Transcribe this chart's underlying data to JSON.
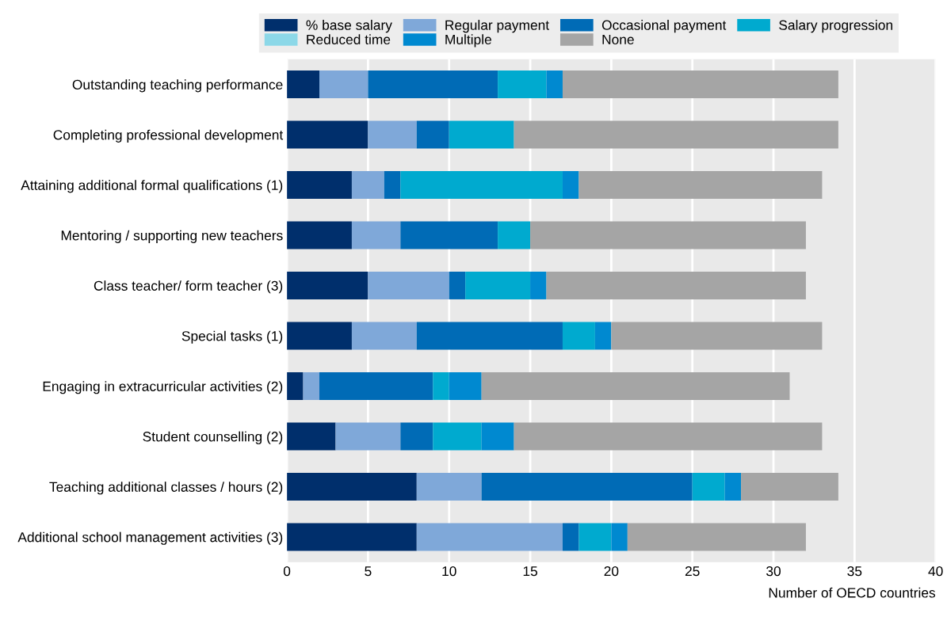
{
  "chart_data": {
    "type": "bar",
    "orientation": "horizontal",
    "stacked": true,
    "categories": [
      "Outstanding teaching performance",
      "Completing professional development",
      "Attaining additional formal qualifications (1)",
      "Mentoring / supporting new teachers",
      "Class teacher/ form teacher (3)",
      "Special tasks (1)",
      "Engaging in extracurricular activities (2)",
      "Student counselling (2)",
      "Teaching additional classes / hours (2)",
      "Additional school management activities (3)"
    ],
    "series": [
      {
        "name": "% base salary",
        "color": "#002f6c",
        "values": [
          2,
          5,
          4,
          4,
          5,
          4,
          1,
          3,
          8,
          8
        ]
      },
      {
        "name": "Regular payment",
        "color": "#7fa8d9",
        "values": [
          3,
          3,
          2,
          3,
          5,
          4,
          1,
          4,
          4,
          9
        ]
      },
      {
        "name": "Occasional payment",
        "color": "#006bb6",
        "values": [
          8,
          2,
          1,
          6,
          1,
          9,
          7,
          2,
          13,
          1
        ]
      },
      {
        "name": "Salary progression",
        "color": "#00aacf",
        "values": [
          3,
          4,
          10,
          2,
          4,
          2,
          1,
          3,
          2,
          2
        ]
      },
      {
        "name": "Reduced time",
        "color": "#8cd8e8",
        "values": [
          0,
          0,
          0,
          0,
          0,
          0,
          0,
          0,
          0,
          0
        ]
      },
      {
        "name": "Multiple",
        "color": "#0089d0",
        "values": [
          1,
          0,
          1,
          0,
          1,
          1,
          2,
          2,
          1,
          1
        ]
      },
      {
        "name": "None",
        "color": "#a5a5a5",
        "values": [
          17,
          20,
          15,
          17,
          16,
          13,
          19,
          19,
          6,
          11
        ]
      }
    ],
    "xlabel": "Number of OECD countries",
    "xlim": [
      0,
      40
    ],
    "xticks": [
      0,
      5,
      10,
      15,
      20,
      25,
      30,
      35,
      40
    ],
    "grid": "x",
    "legend": "top"
  }
}
